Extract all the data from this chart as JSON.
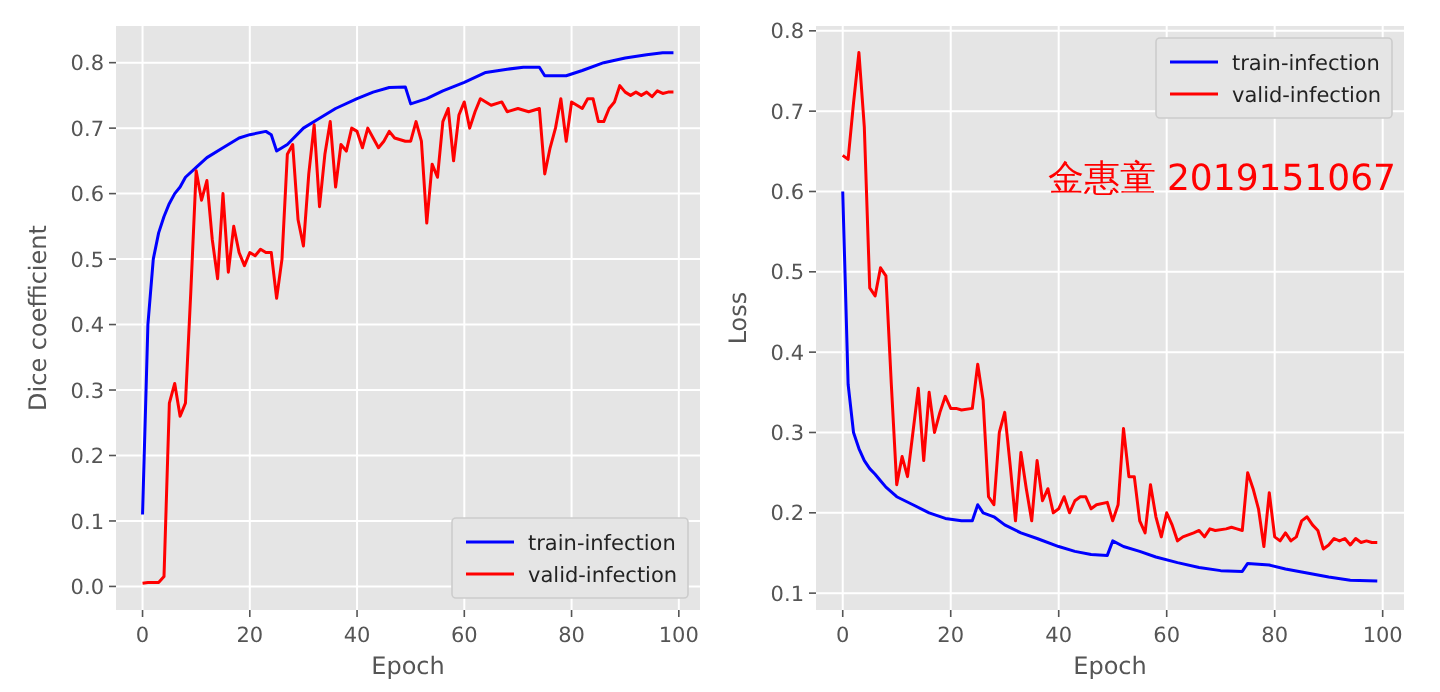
{
  "chart_data": [
    {
      "type": "line",
      "xlabel": "Epoch",
      "ylabel": "Dice coefficient",
      "xlim": [
        -4.95,
        103.95
      ],
      "ylim": [
        -0.036,
        0.856
      ],
      "xticks": [
        0,
        20,
        40,
        60,
        80,
        100
      ],
      "yticks": [
        {
          "value": 0,
          "label": "0.0"
        },
        0.1,
        0.2,
        0.3,
        0.4,
        0.5,
        0.6,
        0.7,
        0.8
      ],
      "grid": true,
      "legend": "bottom right",
      "line_style": "solid",
      "series": [
        {
          "name": "train-infection",
          "color": "#0000ff",
          "x": [
            0,
            1,
            2,
            3,
            4,
            5,
            6,
            7,
            8,
            10,
            12,
            15,
            18,
            20,
            23,
            24,
            25,
            27,
            30,
            33,
            36,
            40,
            43,
            46,
            49,
            50,
            53,
            56,
            60,
            64,
            68,
            71,
            74,
            75,
            79,
            82,
            86,
            90,
            94,
            97,
            99
          ],
          "values": [
            0.11,
            0.4,
            0.5,
            0.54,
            0.565,
            0.585,
            0.6,
            0.61,
            0.625,
            0.64,
            0.655,
            0.67,
            0.685,
            0.69,
            0.695,
            0.69,
            0.665,
            0.675,
            0.7,
            0.715,
            0.73,
            0.745,
            0.755,
            0.762,
            0.763,
            0.737,
            0.745,
            0.757,
            0.77,
            0.785,
            0.79,
            0.793,
            0.793,
            0.78,
            0.78,
            0.788,
            0.8,
            0.807,
            0.812,
            0.815,
            0.815
          ]
        },
        {
          "name": "valid-infection",
          "color": "#ff0000",
          "x": [
            0,
            1,
            2,
            3,
            4,
            5,
            6,
            7,
            8,
            9,
            10,
            11,
            12,
            13,
            14,
            15,
            16,
            17,
            18,
            19,
            20,
            21,
            22,
            23,
            24,
            25,
            26,
            27,
            28,
            29,
            30,
            31,
            32,
            33,
            34,
            35,
            36,
            37,
            38,
            39,
            40,
            41,
            42,
            43,
            44,
            45,
            46,
            47,
            49,
            50,
            51,
            52,
            53,
            54,
            55,
            56,
            57,
            58,
            59,
            60,
            61,
            62,
            63,
            65,
            67,
            68,
            70,
            72,
            74,
            75,
            76,
            77,
            78,
            79,
            80,
            81,
            82,
            83,
            84,
            85,
            86,
            87,
            88,
            89,
            90,
            91,
            92,
            93,
            94,
            95,
            96,
            97,
            98,
            99
          ],
          "values": [
            0.005,
            0.006,
            0.006,
            0.006,
            0.015,
            0.28,
            0.31,
            0.26,
            0.28,
            0.45,
            0.635,
            0.59,
            0.62,
            0.53,
            0.47,
            0.6,
            0.48,
            0.55,
            0.51,
            0.49,
            0.51,
            0.505,
            0.515,
            0.51,
            0.51,
            0.44,
            0.5,
            0.66,
            0.675,
            0.56,
            0.52,
            0.63,
            0.705,
            0.58,
            0.66,
            0.71,
            0.61,
            0.675,
            0.665,
            0.7,
            0.695,
            0.67,
            0.7,
            0.685,
            0.67,
            0.68,
            0.695,
            0.685,
            0.68,
            0.68,
            0.71,
            0.68,
            0.555,
            0.645,
            0.625,
            0.71,
            0.73,
            0.65,
            0.72,
            0.74,
            0.7,
            0.725,
            0.745,
            0.735,
            0.74,
            0.725,
            0.73,
            0.725,
            0.73,
            0.63,
            0.67,
            0.7,
            0.745,
            0.68,
            0.74,
            0.735,
            0.73,
            0.745,
            0.745,
            0.71,
            0.71,
            0.73,
            0.74,
            0.765,
            0.755,
            0.75,
            0.755,
            0.75,
            0.755,
            0.748,
            0.757,
            0.753,
            0.755,
            0.755
          ]
        }
      ]
    },
    {
      "type": "line",
      "xlabel": "Epoch",
      "ylabel": "Loss",
      "xlim": [
        -4.95,
        103.95
      ],
      "ylim": [
        0.079,
        0.806
      ],
      "xticks": [
        0,
        20,
        40,
        60,
        80,
        100
      ],
      "yticks": [
        0.1,
        0.2,
        0.3,
        0.4,
        0.5,
        0.6,
        0.7,
        0.8
      ],
      "grid": true,
      "legend": "top right",
      "line_style": "solid",
      "annotations": [
        "金惠童 2019151067"
      ],
      "series": [
        {
          "name": "train-infection",
          "color": "#0000ff",
          "x": [
            0,
            1,
            2,
            3,
            4,
            5,
            6,
            7,
            8,
            10,
            13,
            16,
            19,
            22,
            24,
            25,
            26,
            28,
            30,
            33,
            36,
            40,
            43,
            46,
            49,
            50,
            52,
            55,
            58,
            62,
            66,
            70,
            74,
            75,
            79,
            82,
            86,
            90,
            94,
            99
          ],
          "values": [
            0.6,
            0.36,
            0.3,
            0.28,
            0.265,
            0.255,
            0.248,
            0.24,
            0.232,
            0.22,
            0.21,
            0.2,
            0.193,
            0.19,
            0.19,
            0.21,
            0.2,
            0.195,
            0.185,
            0.175,
            0.168,
            0.158,
            0.152,
            0.148,
            0.147,
            0.165,
            0.158,
            0.152,
            0.145,
            0.138,
            0.132,
            0.128,
            0.127,
            0.137,
            0.135,
            0.13,
            0.125,
            0.12,
            0.116,
            0.115
          ]
        },
        {
          "name": "valid-infection",
          "color": "#ff0000",
          "x": [
            0,
            1,
            2,
            3,
            4,
            5,
            6,
            7,
            8,
            9,
            10,
            11,
            12,
            13,
            14,
            15,
            16,
            17,
            18,
            19,
            20,
            21,
            22,
            24,
            25,
            26,
            27,
            28,
            29,
            30,
            31,
            32,
            33,
            34,
            35,
            36,
            37,
            38,
            39,
            40,
            41,
            42,
            43,
            44,
            45,
            46,
            47,
            49,
            50,
            51,
            52,
            53,
            54,
            55,
            56,
            57,
            58,
            59,
            60,
            61,
            62,
            63,
            65,
            66,
            67,
            68,
            69,
            71,
            72,
            73,
            74,
            75,
            76,
            77,
            78,
            79,
            80,
            81,
            82,
            83,
            84,
            85,
            86,
            87,
            88,
            89,
            90,
            91,
            92,
            93,
            94,
            95,
            96,
            97,
            98,
            99
          ],
          "values": [
            0.645,
            0.64,
            0.71,
            0.773,
            0.68,
            0.48,
            0.47,
            0.505,
            0.495,
            0.36,
            0.235,
            0.27,
            0.245,
            0.3,
            0.355,
            0.265,
            0.35,
            0.3,
            0.325,
            0.345,
            0.33,
            0.33,
            0.328,
            0.33,
            0.385,
            0.34,
            0.22,
            0.21,
            0.3,
            0.325,
            0.26,
            0.19,
            0.275,
            0.23,
            0.19,
            0.265,
            0.215,
            0.23,
            0.2,
            0.205,
            0.22,
            0.2,
            0.215,
            0.22,
            0.22,
            0.205,
            0.21,
            0.213,
            0.19,
            0.21,
            0.305,
            0.245,
            0.245,
            0.19,
            0.175,
            0.235,
            0.195,
            0.17,
            0.2,
            0.185,
            0.165,
            0.17,
            0.175,
            0.178,
            0.17,
            0.18,
            0.178,
            0.18,
            0.182,
            0.18,
            0.178,
            0.25,
            0.23,
            0.205,
            0.158,
            0.225,
            0.17,
            0.165,
            0.175,
            0.165,
            0.17,
            0.19,
            0.195,
            0.185,
            0.178,
            0.155,
            0.16,
            0.168,
            0.165,
            0.168,
            0.16,
            0.168,
            0.163,
            0.165,
            0.163,
            0.163
          ]
        }
      ]
    }
  ]
}
